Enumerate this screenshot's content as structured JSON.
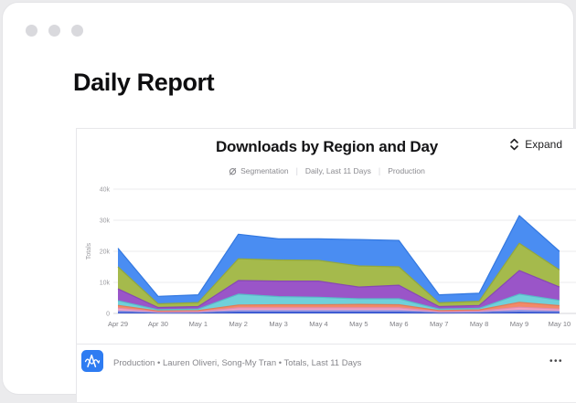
{
  "page": {
    "heading": "Daily Report"
  },
  "widget": {
    "title": "Downloads by Region and Day",
    "expand_label": "Expand",
    "subtitle": {
      "segmentation": "Segmentation",
      "separator": "|",
      "range": "Daily, Last 11 Days",
      "environment": "Production"
    },
    "footer": {
      "text": "Production • Lauren Oliveri, Song-My Tran • Totals, Last 11 Days",
      "menu": "•••"
    }
  },
  "chart_data": {
    "type": "area",
    "stacked": true,
    "title": "Downloads by Region and Day",
    "xlabel": "",
    "ylabel": "Totals",
    "ylim": [
      0,
      40000
    ],
    "grid": true,
    "legend": "none",
    "categories": [
      "Apr 29",
      "Apr 30",
      "May 1",
      "May 2",
      "May 3",
      "May 4",
      "May 5",
      "May 6",
      "May 7",
      "May 8",
      "May 9",
      "May 10"
    ],
    "yticks": [
      {
        "label": "0",
        "value": 0
      },
      {
        "label": "10k",
        "value": 10000
      },
      {
        "label": "20k",
        "value": 20000
      },
      {
        "label": "30k",
        "value": 30000
      },
      {
        "label": "40k",
        "value": 40000
      }
    ],
    "series": [
      {
        "name": "series-1",
        "fill": "#4466e2",
        "stroke": "#3a57c9",
        "values": [
          300,
          150,
          150,
          400,
          400,
          400,
          400,
          400,
          150,
          200,
          400,
          300
        ]
      },
      {
        "name": "series-2",
        "fill": "#a9abf2",
        "stroke": "#9193e0",
        "values": [
          500,
          150,
          200,
          500,
          500,
          500,
          500,
          500,
          200,
          250,
          600,
          400
        ]
      },
      {
        "name": "series-3",
        "fill": "#f2a3c5",
        "stroke": "#e18db2",
        "values": [
          900,
          200,
          250,
          900,
          900,
          900,
          900,
          900,
          250,
          300,
          1000,
          700
        ]
      },
      {
        "name": "series-4",
        "fill": "#f28a68",
        "stroke": "#e07a58",
        "values": [
          900,
          300,
          350,
          900,
          1000,
          1000,
          1100,
          1000,
          350,
          400,
          1600,
          1100
        ]
      },
      {
        "name": "series-5",
        "fill": "#70d0da",
        "stroke": "#58bcc8",
        "values": [
          1500,
          400,
          450,
          3500,
          2600,
          2400,
          1800,
          1900,
          450,
          500,
          2600,
          1700
        ]
      },
      {
        "name": "series-6",
        "fill": "#9a55c8",
        "stroke": "#8747b5",
        "values": [
          3800,
          700,
          800,
          4400,
          5000,
          5200,
          3800,
          4400,
          800,
          900,
          7600,
          4300
        ]
      },
      {
        "name": "series-7",
        "fill": "#a5ba4c",
        "stroke": "#93a83c",
        "values": [
          7100,
          1200,
          1300,
          7000,
          6800,
          6700,
          6800,
          5900,
          1200,
          1400,
          8800,
          5500
        ]
      },
      {
        "name": "series-8",
        "fill": "#4a8df2",
        "stroke": "#3378e0",
        "values": [
          6000,
          2400,
          2500,
          7900,
          6800,
          6900,
          8500,
          8500,
          2600,
          2550,
          8900,
          6000
        ]
      }
    ],
    "colors": {
      "grid": "#ebebed",
      "zero_line": "#d6d6da",
      "tick_text": "#9c9ca1",
      "x_text": "#7e7e84"
    }
  }
}
